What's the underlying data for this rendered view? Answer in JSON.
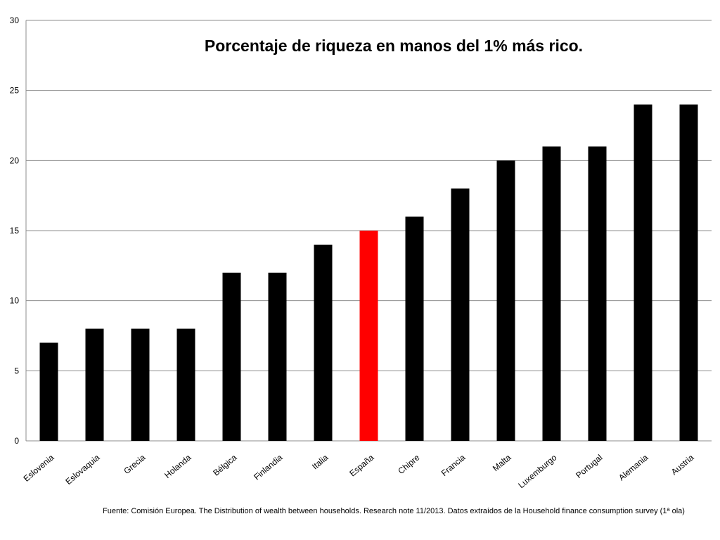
{
  "chart_data": {
    "type": "bar",
    "title": "Porcentaje de riqueza en manos del 1% más rico.",
    "categories": [
      "Eslovenia",
      "Eslovaquia",
      "Grecia",
      "Holanda",
      "Bélgica",
      "Finlandia",
      "Italia",
      "España",
      "Chipre",
      "Francia",
      "Malta",
      "Luxemburgo",
      "Portugal",
      "Alemania",
      "Austria"
    ],
    "values": [
      7,
      8,
      8,
      8,
      12,
      12,
      14,
      15,
      16,
      18,
      20,
      21,
      21,
      24,
      24
    ],
    "highlight": {
      "category": "España",
      "color": "#ff0000"
    },
    "bar_color": "#000000",
    "ylim": [
      0,
      30
    ],
    "yticks": [
      "0",
      "5",
      "10",
      "15",
      "20",
      "25",
      "30"
    ],
    "xlabel": "",
    "ylabel": "",
    "grid": true
  },
  "source_note": "Fuente: Comisión Europea. The Distribution of wealth between households. Research note 11/2013. Datos extraídos de la Household finance consumption survey (1ª ola)"
}
